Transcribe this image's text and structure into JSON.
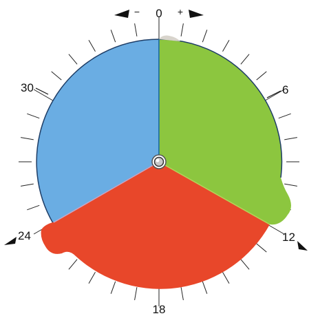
{
  "dial": {
    "labels": {
      "zero": "0",
      "six": "6",
      "twelve": "12",
      "eighteen": "18",
      "twentyfour": "24",
      "thirty": "30"
    },
    "minus": "−",
    "plus": "+",
    "icons": [
      "arrow-left-icon",
      "arrow-right-icon",
      "marker-arrow-left-icon",
      "marker-arrow-right-icon",
      "hub-icon"
    ],
    "sectors": [
      {
        "name": "blue",
        "color": "#6aade3"
      },
      {
        "name": "green",
        "color": "#8cc63f"
      },
      {
        "name": "red",
        "color": "#e8472a"
      }
    ]
  }
}
